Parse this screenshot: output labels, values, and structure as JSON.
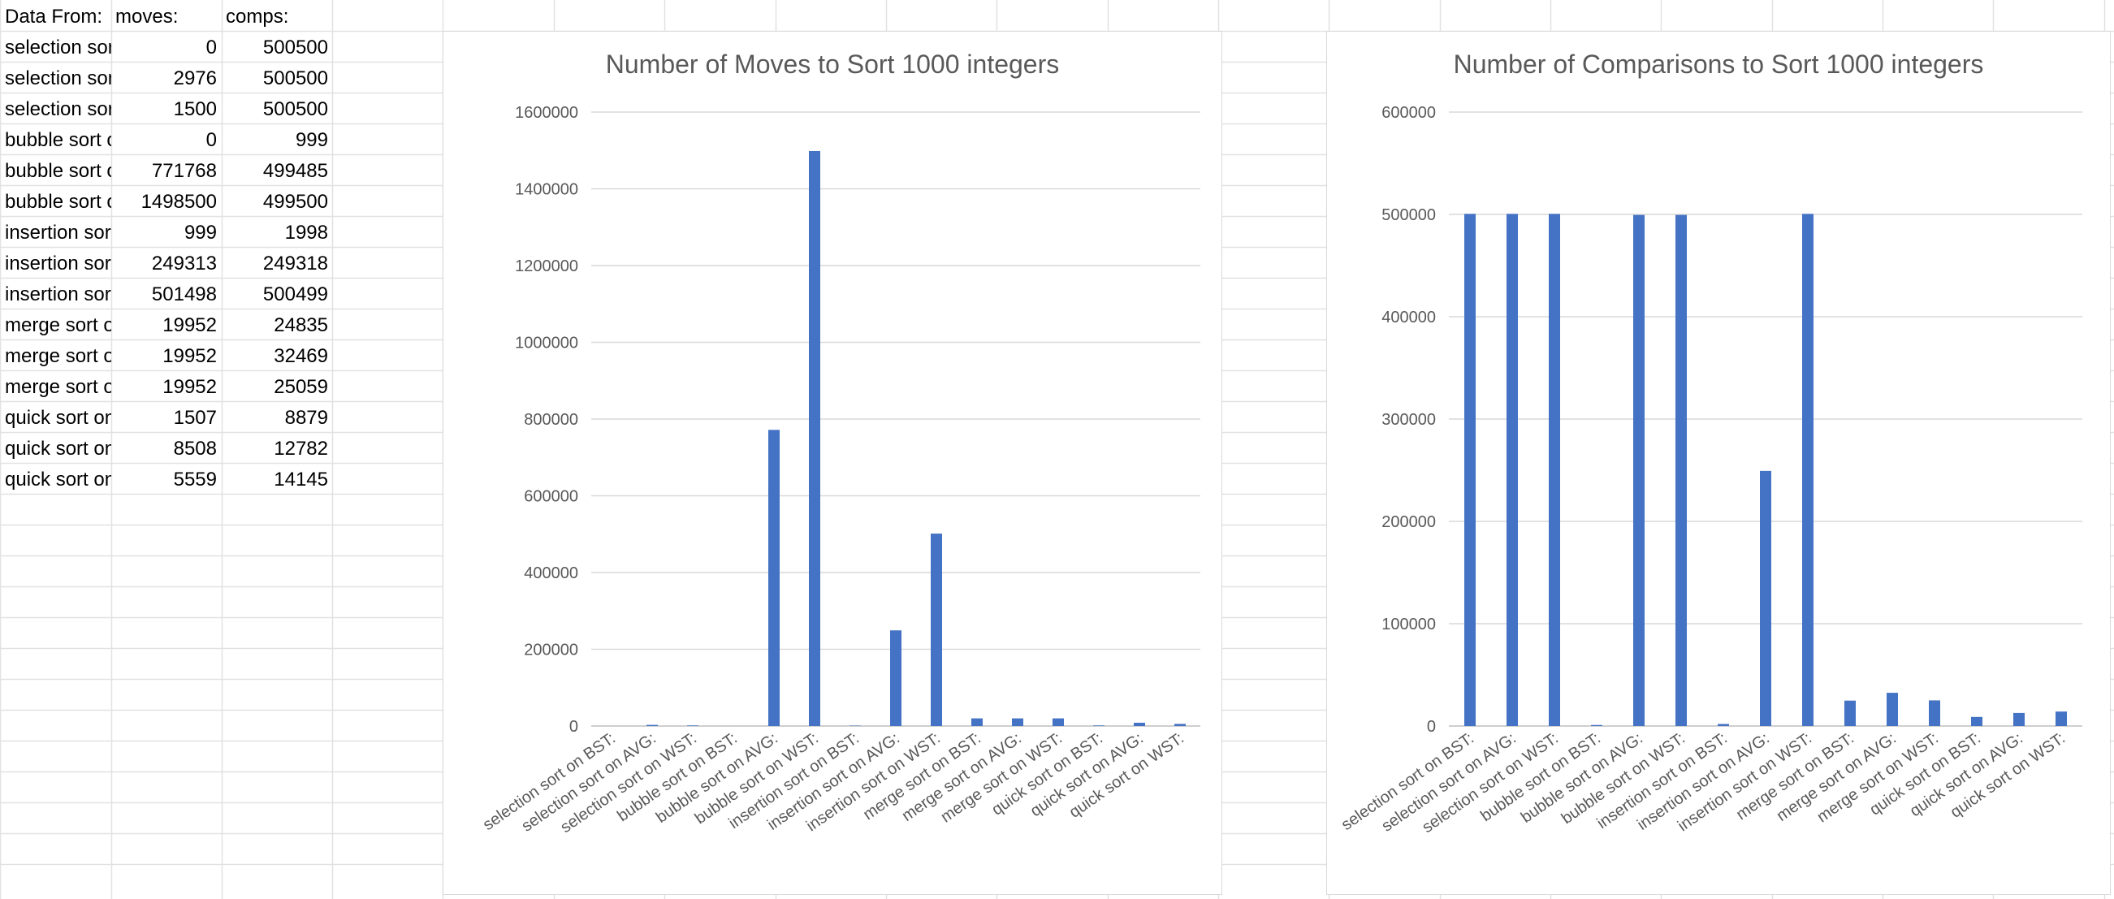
{
  "spreadsheet": {
    "headers": [
      "Data From:",
      "moves:",
      "comps:"
    ],
    "rows": [
      {
        "label": "selection sort on BST:",
        "moves": 0,
        "comps": 500500
      },
      {
        "label": "selection sort on AVG:",
        "moves": 2976,
        "comps": 500500
      },
      {
        "label": "selection sort on WST:",
        "moves": 1500,
        "comps": 500500
      },
      {
        "label": "bubble sort on BST:",
        "moves": 0,
        "comps": 999
      },
      {
        "label": "bubble sort on AVG:",
        "moves": 771768,
        "comps": 499485
      },
      {
        "label": "bubble sort on WST:",
        "moves": 1498500,
        "comps": 499500
      },
      {
        "label": "insertion sort on BST:",
        "moves": 999,
        "comps": 1998
      },
      {
        "label": "insertion sort on AVG:",
        "moves": 249313,
        "comps": 249318
      },
      {
        "label": "insertion sort on WST:",
        "moves": 501498,
        "comps": 500499
      },
      {
        "label": "merge sort on BST:",
        "moves": 19952,
        "comps": 24835
      },
      {
        "label": "merge sort on AVG:",
        "moves": 19952,
        "comps": 32469
      },
      {
        "label": "merge sort on WST:",
        "moves": 19952,
        "comps": 25059
      },
      {
        "label": "quick sort on BST:",
        "moves": 1507,
        "comps": 8879
      },
      {
        "label": "quick sort on AVG:",
        "moves": 8508,
        "comps": 12782
      },
      {
        "label": "quick sort on WST:",
        "moves": 5559,
        "comps": 14145
      }
    ]
  },
  "chart_data": [
    {
      "type": "bar",
      "title": "Number of Moves to Sort 1000 integers",
      "categories": [
        "selection sort on BST:",
        "selection sort on AVG:",
        "selection sort on WST:",
        "bubble sort on BST:",
        "bubble sort on AVG:",
        "bubble sort on WST:",
        "insertion sort on BST:",
        "insertion sort on AVG:",
        "insertion sort on WST:",
        "merge sort on BST:",
        "merge sort on AVG:",
        "merge sort on WST:",
        "quick sort on BST:",
        "quick sort on AVG:",
        "quick sort on WST:"
      ],
      "values": [
        0,
        2976,
        1500,
        0,
        771768,
        1498500,
        999,
        249313,
        501498,
        19952,
        19952,
        19952,
        1507,
        8508,
        5559
      ],
      "ylim": [
        0,
        1600000
      ],
      "yticks": [
        0,
        200000,
        400000,
        600000,
        800000,
        1000000,
        1200000,
        1400000,
        1600000
      ],
      "bar_color": "#4472c4",
      "grid": true
    },
    {
      "type": "bar",
      "title": "Number of Comparisons to Sort 1000 integers",
      "categories": [
        "selection sort on BST:",
        "selection sort on AVG:",
        "selection sort on WST:",
        "bubble sort on BST:",
        "bubble sort on AVG:",
        "bubble sort on WST:",
        "insertion sort on BST:",
        "insertion sort on AVG:",
        "insertion sort on WST:",
        "merge sort on BST:",
        "merge sort on AVG:",
        "merge sort on WST:",
        "quick sort on BST:",
        "quick sort on AVG:",
        "quick sort on WST:"
      ],
      "values": [
        500500,
        500500,
        500500,
        999,
        499485,
        499500,
        1998,
        249318,
        500499,
        24835,
        32469,
        25059,
        8879,
        12782,
        14145
      ],
      "ylim": [
        0,
        600000
      ],
      "yticks": [
        0,
        100000,
        200000,
        300000,
        400000,
        500000,
        600000
      ],
      "bar_color": "#4472c4",
      "grid": true
    }
  ]
}
